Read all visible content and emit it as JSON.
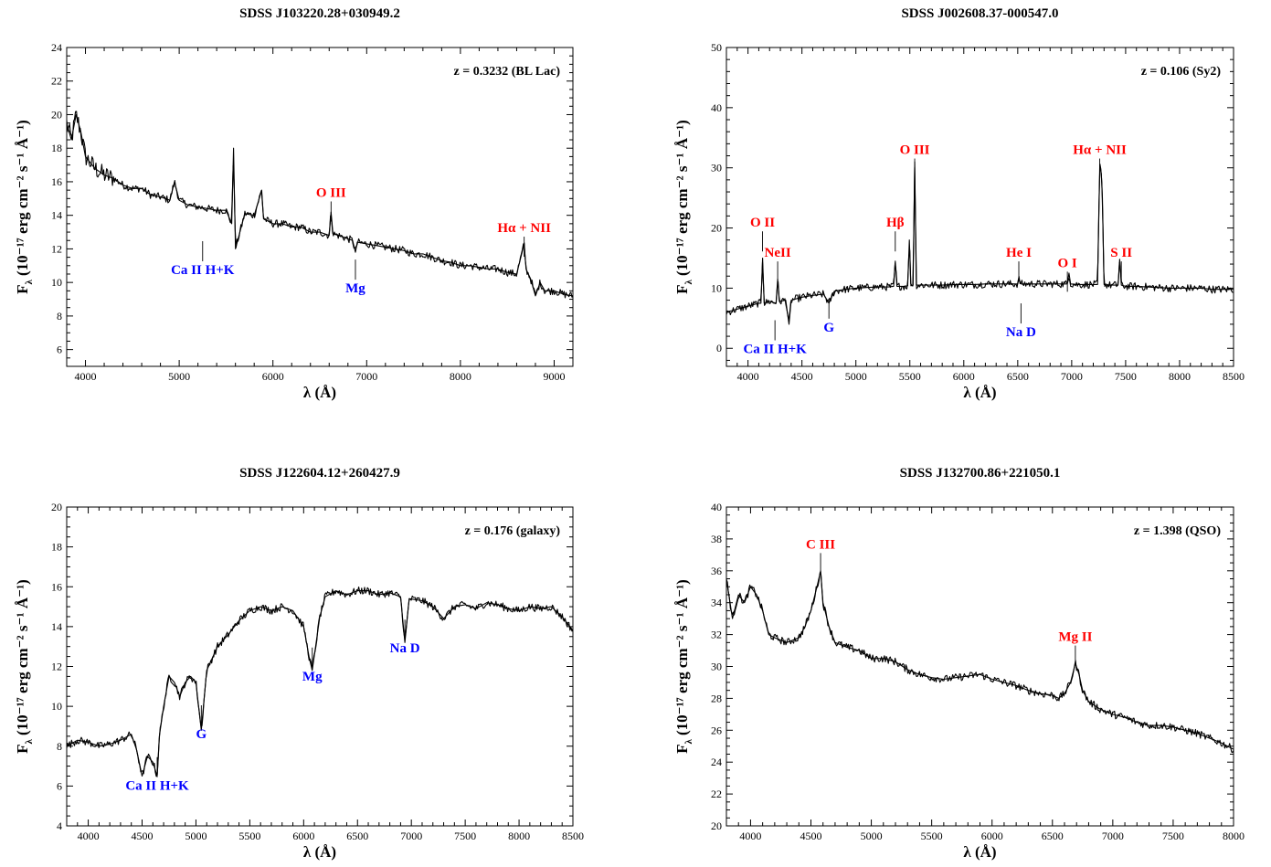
{
  "chart_data": [
    {
      "type": "line",
      "title": "SDSS J103220.28+030949.2",
      "annotation": "z = 0.3232 (BL Lac)",
      "xlabel": "λ (Å)",
      "ylabel_main": "F",
      "ylabel_sub": "λ",
      "ylabel_rest": "(10⁻¹⁷ erg cm⁻² s⁻¹ Å⁻¹)",
      "xlim": [
        3800,
        9200
      ],
      "ylim": [
        5,
        24
      ],
      "xticks": [
        4000,
        5000,
        6000,
        7000,
        8000,
        9000
      ],
      "yticks": [
        6,
        8,
        10,
        12,
        14,
        16,
        18,
        20,
        22,
        24
      ],
      "grid": false,
      "legend": "none",
      "series": [
        {
          "x": [
            3800,
            3850,
            3900,
            3950,
            4000,
            4100,
            4200,
            4300,
            4400,
            4500,
            4600,
            4700,
            4800,
            4900,
            4950,
            5000,
            5100,
            5200,
            5300,
            5400,
            5500,
            5560,
            5580,
            5600,
            5700,
            5800,
            5880,
            5900,
            6000,
            6100,
            6200,
            6300,
            6400,
            6500,
            6600,
            6620,
            6640,
            6700,
            6800,
            6850,
            6880,
            6900,
            7000,
            7100,
            7200,
            7300,
            7400,
            7500,
            7600,
            7700,
            7800,
            7900,
            8000,
            8100,
            8200,
            8300,
            8400,
            8500,
            8600,
            8680,
            8700,
            8750,
            8800,
            8850,
            8900,
            9000,
            9100,
            9200
          ],
          "y": [
            19.5,
            18.5,
            20,
            19,
            17.5,
            16.8,
            16.4,
            16.2,
            15.8,
            15.6,
            15.6,
            15.2,
            15.1,
            14.9,
            16,
            14.9,
            14.6,
            14.5,
            14.4,
            14.3,
            14.3,
            13.5,
            18,
            12,
            14.1,
            14,
            15.5,
            13.8,
            13.5,
            13.5,
            13.3,
            13.3,
            13,
            13,
            12.8,
            14.2,
            12.9,
            12.8,
            12.6,
            12.5,
            11.8,
            12.4,
            12.3,
            12.2,
            12.1,
            12,
            11.9,
            11.7,
            11.7,
            11.5,
            11.3,
            11.2,
            11,
            11,
            10.9,
            10.8,
            10.8,
            10.6,
            10.5,
            12.3,
            10.8,
            10.2,
            9.2,
            10,
            9.5,
            9.5,
            9.3,
            9.2
          ]
        }
      ],
      "line_labels": [
        {
          "text": "O III",
          "x": 6620,
          "y": 15.1,
          "color": "#ff0000"
        },
        {
          "text": "Hα + NII",
          "x": 8680,
          "y": 13,
          "color": "#ff0000"
        },
        {
          "text": "Ca II H+K",
          "x": 5250,
          "y": 10.5,
          "color": "#0000ff"
        },
        {
          "text": "Mg",
          "x": 6880,
          "y": 9.4,
          "color": "#0000ff"
        }
      ]
    },
    {
      "type": "line",
      "title": "SDSS J002608.37-000547.0",
      "annotation": "z = 0.106 (Sy2)",
      "xlabel": "λ (Å)",
      "ylabel_main": "F",
      "ylabel_sub": "λ",
      "ylabel_rest": "(10⁻¹⁷ erg cm⁻² s⁻¹ Å⁻¹)",
      "xlim": [
        3800,
        8500
      ],
      "ylim": [
        -3,
        50
      ],
      "xticks": [
        4000,
        4500,
        5000,
        5500,
        6000,
        6500,
        7000,
        7500,
        8000,
        8500
      ],
      "yticks": [
        0,
        10,
        20,
        30,
        40,
        50
      ],
      "grid": false,
      "legend": "none",
      "series": [
        {
          "x": [
            3800,
            3900,
            4000,
            4100,
            4120,
            4135,
            4150,
            4200,
            4260,
            4275,
            4290,
            4350,
            4380,
            4400,
            4500,
            4600,
            4700,
            4750,
            4800,
            4900,
            5000,
            5100,
            5200,
            5300,
            5350,
            5365,
            5380,
            5450,
            5480,
            5495,
            5510,
            5530,
            5545,
            5560,
            5600,
            5700,
            5800,
            5900,
            6000,
            6100,
            6200,
            6300,
            6400,
            6500,
            6510,
            6530,
            6600,
            6700,
            6800,
            6900,
            6960,
            6975,
            6990,
            7050,
            7150,
            7240,
            7260,
            7275,
            7285,
            7300,
            7350,
            7400,
            7430,
            7445,
            7460,
            7500,
            7600,
            7700,
            7800,
            7900,
            8000,
            8100,
            8200,
            8300,
            8400,
            8500
          ],
          "y": [
            6,
            6.5,
            7,
            7.5,
            7.5,
            15,
            7.5,
            7.8,
            7.5,
            11.5,
            7.8,
            8,
            4,
            8,
            8.5,
            8.8,
            9,
            7.5,
            9.5,
            9.8,
            10,
            10.1,
            10.2,
            10.2,
            10.3,
            14.5,
            10.3,
            10.3,
            10.4,
            18,
            10.4,
            10.5,
            31,
            10.5,
            10.5,
            10.5,
            10.5,
            10.6,
            10.6,
            10.6,
            10.7,
            10.7,
            10.7,
            10.7,
            11.5,
            10.7,
            10.7,
            10.7,
            10.7,
            10.7,
            10.7,
            12.5,
            10.7,
            10.6,
            10.6,
            10.6,
            30.5,
            29,
            25,
            10.6,
            10.5,
            10.5,
            10.5,
            14.8,
            10.5,
            10.3,
            10.3,
            10.2,
            10.1,
            10,
            10,
            10,
            10,
            9.8,
            9.8,
            9.8
          ]
        }
      ],
      "line_labels": [
        {
          "text": "O II",
          "x": 4135,
          "y": 20.2,
          "color": "#ff0000"
        },
        {
          "text": "NeII",
          "x": 4275,
          "y": 15.2,
          "color": "#ff0000"
        },
        {
          "text": "Hβ",
          "x": 5365,
          "y": 20.2,
          "color": "#ff0000"
        },
        {
          "text": "O III",
          "x": 5545,
          "y": 32.3,
          "color": "#ff0000"
        },
        {
          "text": "He I",
          "x": 6510,
          "y": 15.2,
          "color": "#ff0000"
        },
        {
          "text": "O I",
          "x": 6960,
          "y": 13.5,
          "color": "#ff0000"
        },
        {
          "text": "Hα + NII",
          "x": 7260,
          "y": 32.3,
          "color": "#ff0000"
        },
        {
          "text": "S II",
          "x": 7460,
          "y": 15.2,
          "color": "#ff0000"
        },
        {
          "text": "Ca II H+K",
          "x": 4250,
          "y": -0.8,
          "color": "#0000ff"
        },
        {
          "text": "G",
          "x": 4750,
          "y": 2.8,
          "color": "#0000ff"
        },
        {
          "text": "Na D",
          "x": 6530,
          "y": 2.0,
          "color": "#0000ff"
        }
      ]
    },
    {
      "type": "line",
      "title": "SDSS J122604.12+260427.9",
      "annotation": "z = 0.176 (galaxy)",
      "xlabel": "λ (Å)",
      "ylabel_main": "F",
      "ylabel_sub": "λ",
      "ylabel_rest": "(10⁻¹⁷ erg cm⁻² s⁻¹ Å⁻¹)",
      "xlim": [
        3800,
        8500
      ],
      "ylim": [
        4,
        20
      ],
      "xticks": [
        4000,
        4500,
        5000,
        5500,
        6000,
        6500,
        7000,
        7500,
        8000,
        8500
      ],
      "yticks": [
        4,
        6,
        8,
        10,
        12,
        14,
        16,
        18,
        20
      ],
      "grid": false,
      "legend": "none",
      "series": [
        {
          "x": [
            3800,
            3900,
            4000,
            4100,
            4200,
            4300,
            4400,
            4450,
            4500,
            4550,
            4600,
            4640,
            4660,
            4700,
            4750,
            4800,
            4850,
            4900,
            4950,
            5000,
            5050,
            5100,
            5200,
            5300,
            5400,
            5500,
            5600,
            5700,
            5800,
            5900,
            6000,
            6050,
            6080,
            6150,
            6200,
            6300,
            6400,
            6500,
            6600,
            6700,
            6800,
            6900,
            6940,
            6980,
            7100,
            7200,
            7300,
            7400,
            7500,
            7600,
            7700,
            7800,
            7900,
            8000,
            8100,
            8200,
            8300,
            8400,
            8500
          ],
          "y": [
            8,
            8.3,
            8.2,
            8,
            8.1,
            8.3,
            8.6,
            7.8,
            6.5,
            7.5,
            7.2,
            6.5,
            8.5,
            10,
            11.5,
            11.2,
            10.5,
            11.2,
            11.5,
            11.2,
            8.8,
            11.8,
            13,
            13.6,
            14.3,
            14.8,
            15,
            14.8,
            15,
            14.8,
            14,
            12.5,
            11.8,
            14.5,
            15.5,
            15.8,
            15.6,
            15.8,
            15.8,
            15.6,
            15.7,
            15.5,
            13.2,
            15.4,
            15.3,
            15,
            14.4,
            15,
            15.1,
            14.9,
            15.2,
            15.1,
            14.9,
            14.8,
            15,
            14.9,
            15,
            14.5,
            13.8
          ]
        }
      ],
      "line_labels": [
        {
          "text": "Ca II H+K",
          "x": 4640,
          "y": 5.8,
          "color": "#0000ff"
        },
        {
          "text": "G",
          "x": 5050,
          "y": 8.4,
          "color": "#0000ff"
        },
        {
          "text": "Mg",
          "x": 6080,
          "y": 11.3,
          "color": "#0000ff"
        },
        {
          "text": "Na D",
          "x": 6940,
          "y": 12.7,
          "color": "#0000ff"
        }
      ]
    },
    {
      "type": "line",
      "title": "SDSS J132700.86+221050.1",
      "annotation": "z = 1.398 (QSO)",
      "xlabel": "λ (Å)",
      "ylabel_main": "F",
      "ylabel_sub": "λ",
      "ylabel_rest": "(10⁻¹⁷ erg cm⁻² s⁻¹ Å⁻¹)",
      "xlim": [
        3800,
        8000
      ],
      "ylim": [
        20,
        40
      ],
      "xticks": [
        4000,
        4500,
        5000,
        5500,
        6000,
        6500,
        7000,
        7500,
        8000
      ],
      "yticks": [
        20,
        22,
        24,
        26,
        28,
        30,
        32,
        34,
        36,
        38,
        40
      ],
      "grid": false,
      "legend": "none",
      "series": [
        {
          "x": [
            3800,
            3850,
            3900,
            3950,
            4000,
            4050,
            4100,
            4150,
            4200,
            4300,
            4400,
            4450,
            4500,
            4550,
            4580,
            4600,
            4650,
            4700,
            4800,
            4900,
            5000,
            5100,
            5200,
            5300,
            5400,
            5500,
            5600,
            5700,
            5800,
            5900,
            6000,
            6100,
            6200,
            6300,
            6400,
            6500,
            6550,
            6600,
            6650,
            6690,
            6720,
            6750,
            6800,
            6900,
            7000,
            7100,
            7200,
            7300,
            7400,
            7500,
            7600,
            7700,
            7800,
            7900,
            8000
          ],
          "y": [
            35.5,
            33,
            34.5,
            34,
            35,
            34.5,
            33.5,
            32,
            31.8,
            31.5,
            31.8,
            32.5,
            33.5,
            35,
            36,
            34,
            32.5,
            31.5,
            31.2,
            31,
            30.5,
            30.5,
            30.3,
            29.8,
            29.5,
            29.3,
            29.2,
            29.3,
            29.4,
            29.5,
            29.2,
            29,
            28.8,
            28.5,
            28.3,
            28.2,
            28,
            28.3,
            29,
            30.2,
            29.5,
            28.5,
            27.8,
            27.3,
            27,
            26.8,
            26.5,
            26.3,
            26.3,
            26.2,
            26,
            25.8,
            25.5,
            25.2,
            24.8
          ]
        }
      ],
      "line_labels": [
        {
          "text": "C III",
          "x": 4580,
          "y": 37.4,
          "color": "#ff0000"
        },
        {
          "text": "Mg II",
          "x": 6690,
          "y": 31.6,
          "color": "#ff0000"
        }
      ]
    }
  ]
}
